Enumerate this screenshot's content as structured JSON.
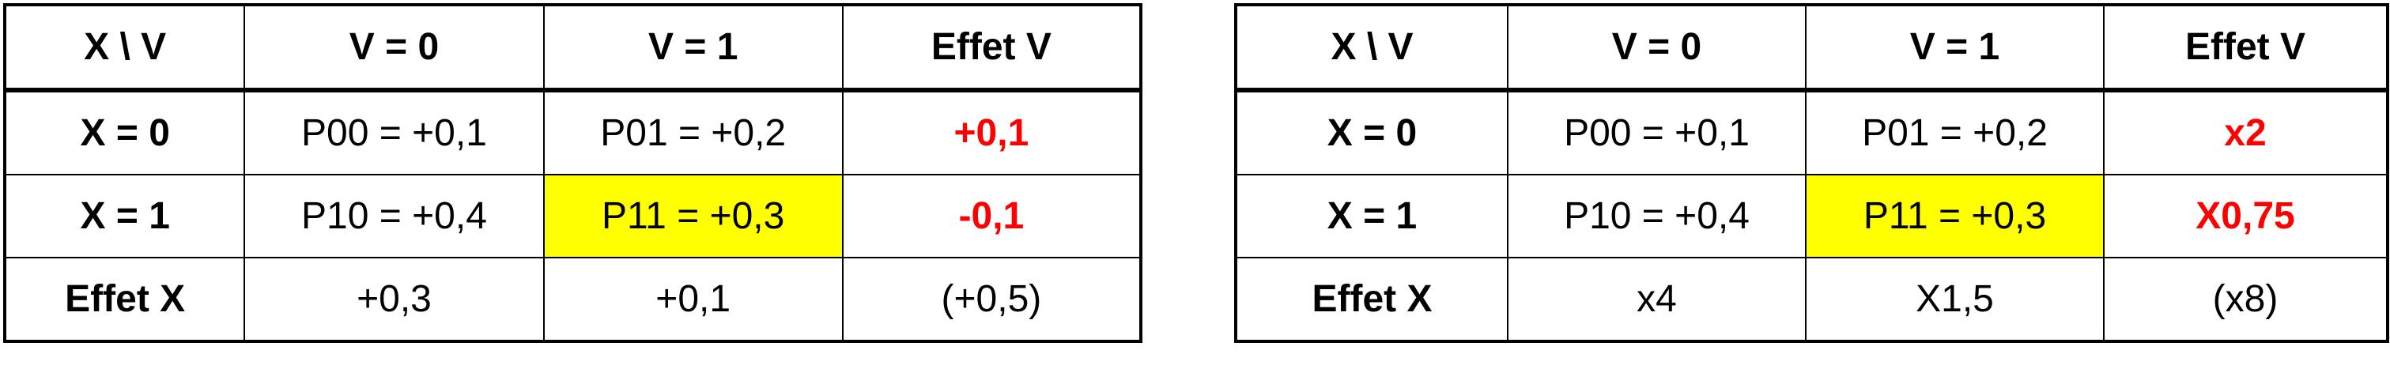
{
  "tables": [
    {
      "header": [
        "X \\ V",
        "V = 0",
        "V = 1",
        "Effet V"
      ],
      "rows": [
        [
          "X = 0",
          "P00 = +0,1",
          "P01 = +0,2",
          "+0,1"
        ],
        [
          "X = 1",
          "P10 = +0,4",
          "P11 = +0,3",
          "-0,1"
        ],
        [
          "Effet X",
          "+0,3",
          "+0,1",
          "(+0,5)"
        ]
      ]
    },
    {
      "header": [
        "X \\ V",
        "V = 0",
        "V = 1",
        "Effet V"
      ],
      "rows": [
        [
          "X = 0",
          "P00 = +0,1",
          "P01 = +0,2",
          "x2"
        ],
        [
          "X = 1",
          "P10 = +0,4",
          "P11 = +0,3",
          "X0,75"
        ],
        [
          "Effet X",
          "x4",
          "X1,5",
          "(x8)"
        ]
      ]
    }
  ],
  "colors": {
    "effect_text": "#ff0000",
    "highlight_fill": "#ffff00",
    "border": "#000000"
  }
}
